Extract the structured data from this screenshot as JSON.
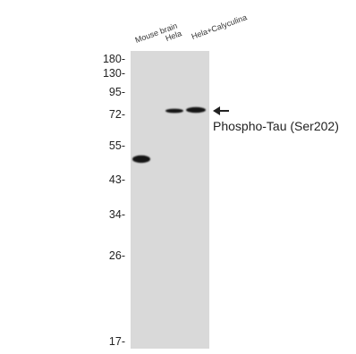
{
  "blot": {
    "lanes": [
      {
        "label": "Mouse brain"
      },
      {
        "label": "Hela"
      },
      {
        "label": "Hela+Calyculina"
      }
    ],
    "mw_markers": [
      "180-",
      "130-",
      "95-",
      "72-",
      "55-",
      "43-",
      "34-",
      "26-",
      "17-"
    ],
    "target_label": "Phospho-Tau (Ser202)",
    "membrane_color": "#d9d9d9",
    "band_color": "#141414"
  }
}
